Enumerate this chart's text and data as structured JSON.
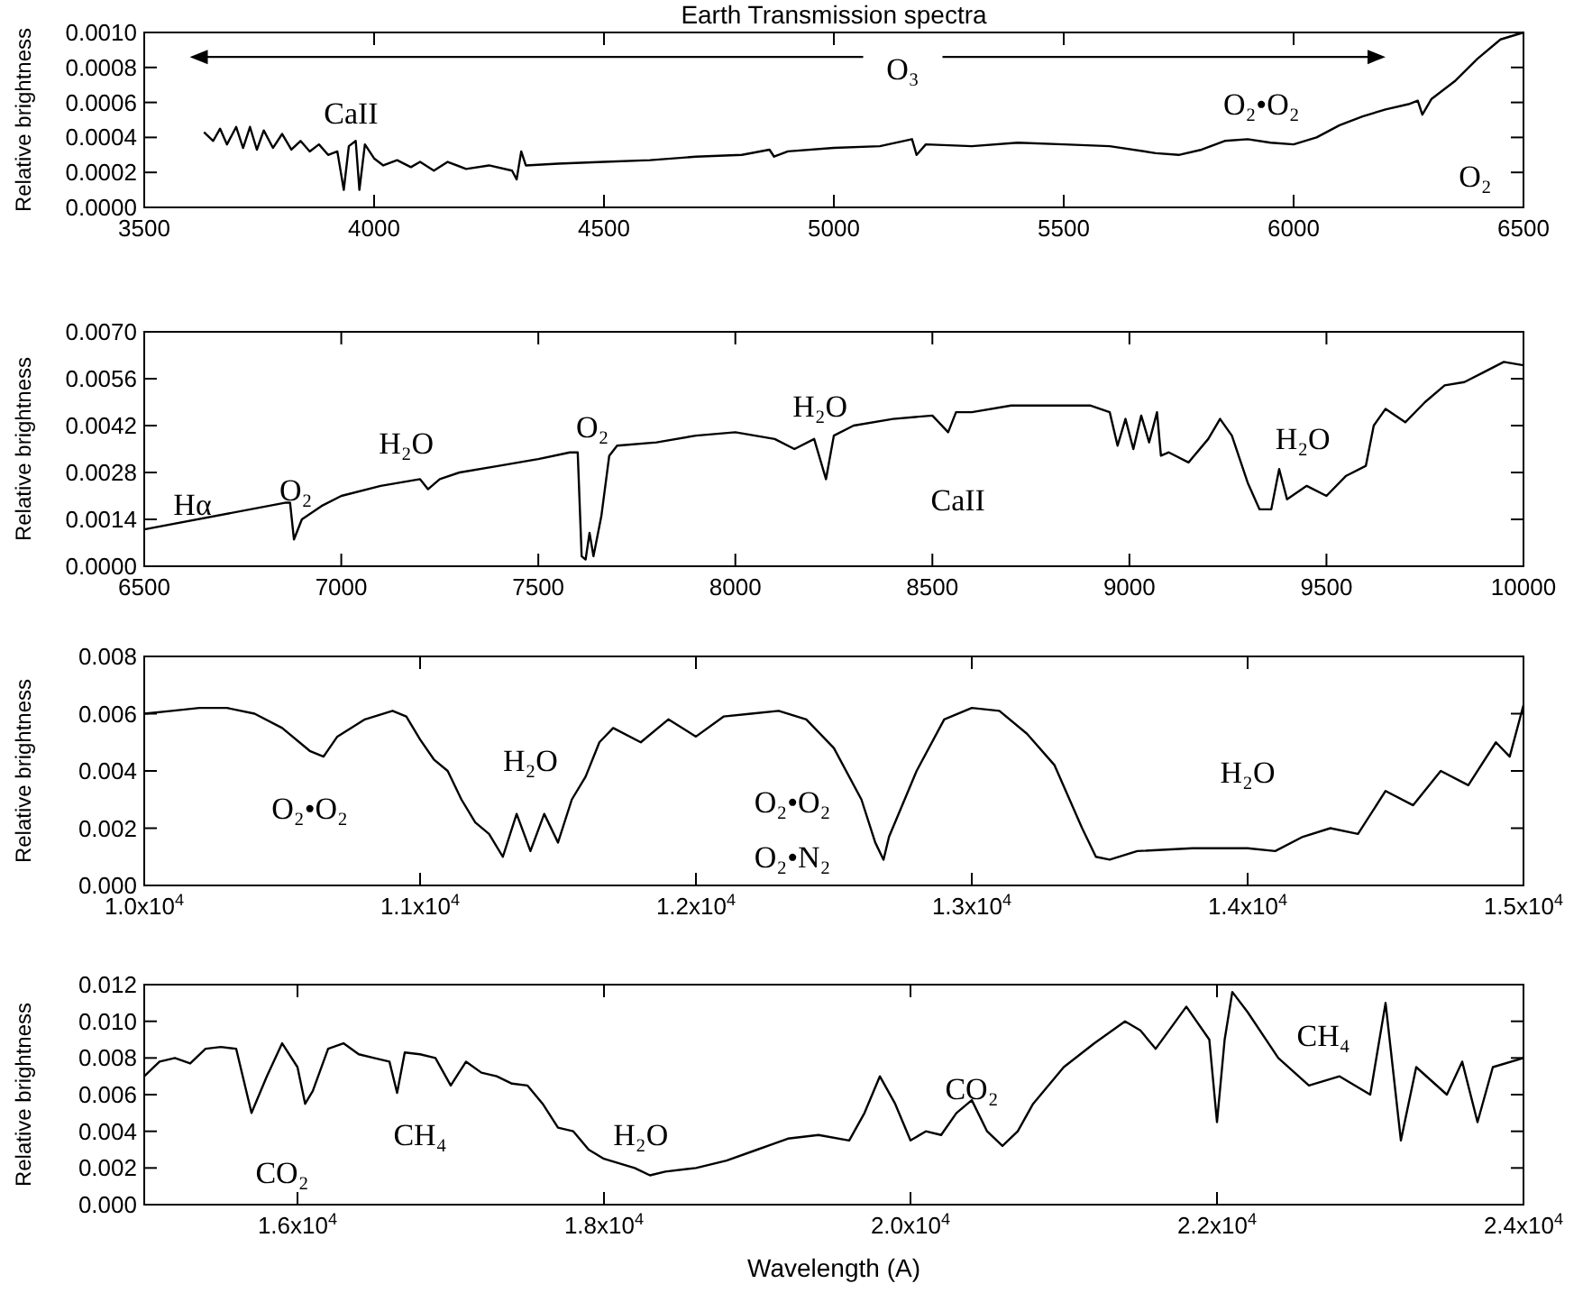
{
  "chart_data": [
    {
      "type": "line",
      "title": "Earth Transmission spectra",
      "ylabel": "Relative brightness",
      "x": [
        3630,
        3650,
        3665,
        3680,
        3700,
        3715,
        3730,
        3745,
        3760,
        3780,
        3800,
        3820,
        3840,
        3860,
        3880,
        3900,
        3920,
        3934,
        3945,
        3960,
        3968,
        3980,
        4000,
        4020,
        4050,
        4080,
        4100,
        4130,
        4160,
        4200,
        4250,
        4300,
        4310,
        4320,
        4330,
        4400,
        4500,
        4600,
        4700,
        4800,
        4860,
        4870,
        4900,
        5000,
        5100,
        5170,
        5180,
        5200,
        5300,
        5400,
        5500,
        5600,
        5700,
        5750,
        5800,
        5850,
        5900,
        5950,
        6000,
        6050,
        6100,
        6150,
        6200,
        6250,
        6270,
        6280,
        6300,
        6350,
        6400,
        6450,
        6500
      ],
      "series": [
        {
          "color": "#000000",
          "values": [
            0.00043,
            0.00038,
            0.00045,
            0.00036,
            0.00046,
            0.00034,
            0.00046,
            0.00033,
            0.00044,
            0.00034,
            0.00042,
            0.00033,
            0.00038,
            0.00032,
            0.00036,
            0.0003,
            0.00032,
            0.0001,
            0.00035,
            0.00038,
            0.0001,
            0.00036,
            0.00028,
            0.00024,
            0.00027,
            0.00023,
            0.00026,
            0.00021,
            0.00026,
            0.00022,
            0.00024,
            0.00021,
            0.00016,
            0.00032,
            0.00024,
            0.00025,
            0.00026,
            0.00027,
            0.00029,
            0.0003,
            0.00033,
            0.00029,
            0.00032,
            0.00034,
            0.00035,
            0.00039,
            0.0003,
            0.00036,
            0.00035,
            0.00037,
            0.00036,
            0.00035,
            0.00031,
            0.0003,
            0.00033,
            0.00038,
            0.00039,
            0.00037,
            0.00036,
            0.0004,
            0.00047,
            0.00052,
            0.00056,
            0.00059,
            0.00061,
            0.00053,
            0.00062,
            0.00072,
            0.00085,
            0.00096,
            0.001
          ]
        }
      ],
      "xlim": [
        3500,
        6500
      ],
      "xticks": [
        3500,
        4000,
        4500,
        5000,
        5500,
        6000,
        6500
      ],
      "ylim": [
        0,
        0.001
      ],
      "yticks": [
        {
          "value": 0,
          "label": "0.0000"
        },
        {
          "value": 0.0002,
          "label": "0.0002"
        },
        {
          "value": 0.0004,
          "label": "0.0004"
        },
        {
          "value": 0.0006,
          "label": "0.0006"
        },
        {
          "value": 0.0008,
          "label": "0.0008"
        },
        {
          "value": 0.001,
          "label": "0.0010"
        }
      ],
      "annotations": [
        "O₃",
        "CaII",
        "O₂•O₂",
        "O₂"
      ]
    },
    {
      "type": "line",
      "ylabel": "Relative brightness",
      "x": [
        6500,
        6860,
        6870,
        6880,
        6900,
        6950,
        7000,
        7100,
        7200,
        7220,
        7250,
        7300,
        7400,
        7500,
        7580,
        7600,
        7610,
        7620,
        7630,
        7640,
        7660,
        7680,
        7700,
        7800,
        7900,
        8000,
        8100,
        8150,
        8200,
        8230,
        8250,
        8300,
        8400,
        8500,
        8540,
        8560,
        8600,
        8700,
        8800,
        8900,
        8950,
        8970,
        8990,
        9010,
        9030,
        9050,
        9070,
        9080,
        9100,
        9150,
        9200,
        9230,
        9260,
        9300,
        9330,
        9360,
        9380,
        9400,
        9450,
        9500,
        9550,
        9600,
        9620,
        9650,
        9700,
        9750,
        9800,
        9850,
        9900,
        9950,
        10000
      ],
      "series": [
        {
          "color": "#000000",
          "values": [
            0.0011,
            0.0019,
            0.0019,
            0.0008,
            0.0014,
            0.0018,
            0.0021,
            0.0024,
            0.0026,
            0.0023,
            0.0026,
            0.0028,
            0.003,
            0.0032,
            0.0034,
            0.0034,
            0.0003,
            0.0002,
            0.001,
            0.0003,
            0.0015,
            0.0033,
            0.0036,
            0.0037,
            0.0039,
            0.004,
            0.0038,
            0.0035,
            0.0038,
            0.0026,
            0.0039,
            0.0042,
            0.0044,
            0.0045,
            0.004,
            0.0046,
            0.0046,
            0.0048,
            0.0048,
            0.0048,
            0.0046,
            0.0036,
            0.0044,
            0.0035,
            0.0045,
            0.0037,
            0.0046,
            0.0033,
            0.0034,
            0.0031,
            0.0038,
            0.0044,
            0.0039,
            0.0025,
            0.0017,
            0.0017,
            0.0029,
            0.002,
            0.0024,
            0.0021,
            0.0027,
            0.003,
            0.0042,
            0.0047,
            0.0043,
            0.0049,
            0.0054,
            0.0055,
            0.0058,
            0.0061,
            0.006
          ]
        }
      ],
      "xlim": [
        6500,
        10000
      ],
      "xticks": [
        6500,
        7000,
        7500,
        8000,
        8500,
        9000,
        9500,
        10000
      ],
      "ylim": [
        0,
        0.007
      ],
      "yticks": [
        {
          "value": 0,
          "label": "0.0000"
        },
        {
          "value": 0.0014,
          "label": "0.0014"
        },
        {
          "value": 0.0028,
          "label": "0.0028"
        },
        {
          "value": 0.0042,
          "label": "0.0042"
        },
        {
          "value": 0.0056,
          "label": "0.0056"
        },
        {
          "value": 0.007,
          "label": "0.0070"
        }
      ],
      "annotations": [
        "Hα",
        "O₂",
        "H₂O",
        "O₂",
        "H₂O",
        "CaII",
        "H₂O"
      ]
    },
    {
      "type": "line",
      "ylabel": "Relative brightness",
      "x": [
        10000,
        10100,
        10200,
        10300,
        10400,
        10500,
        10600,
        10650,
        10700,
        10800,
        10900,
        10950,
        11000,
        11050,
        11100,
        11150,
        11200,
        11250,
        11300,
        11350,
        11400,
        11450,
        11500,
        11550,
        11600,
        11650,
        11700,
        11800,
        11900,
        12000,
        12100,
        12200,
        12300,
        12400,
        12500,
        12600,
        12650,
        12680,
        12700,
        12800,
        12900,
        13000,
        13100,
        13200,
        13300,
        13400,
        13450,
        13500,
        13600,
        13800,
        14000,
        14100,
        14200,
        14300,
        14400,
        14500,
        14600,
        14700,
        14800,
        14900,
        14950,
        15000
      ],
      "series": [
        {
          "color": "#000000",
          "values": [
            0.006,
            0.0061,
            0.0062,
            0.0062,
            0.006,
            0.0055,
            0.0047,
            0.0045,
            0.0052,
            0.0058,
            0.0061,
            0.0059,
            0.0051,
            0.0044,
            0.004,
            0.003,
            0.0022,
            0.0018,
            0.001,
            0.0025,
            0.0012,
            0.0025,
            0.0015,
            0.003,
            0.0038,
            0.005,
            0.0055,
            0.005,
            0.0058,
            0.0052,
            0.0059,
            0.006,
            0.0061,
            0.0058,
            0.0048,
            0.003,
            0.0015,
            0.0009,
            0.0017,
            0.004,
            0.0058,
            0.0062,
            0.0061,
            0.0053,
            0.0042,
            0.002,
            0.001,
            0.0009,
            0.0012,
            0.0013,
            0.0013,
            0.0012,
            0.0017,
            0.002,
            0.0018,
            0.0033,
            0.0028,
            0.004,
            0.0035,
            0.005,
            0.0045,
            0.0063
          ]
        }
      ],
      "xlim": [
        10000,
        15000
      ],
      "xticks": [
        {
          "value": 10000,
          "label": "1.0x10$^{4}$"
        },
        {
          "value": 11000,
          "label": "1.1x10$^{4}$"
        },
        {
          "value": 12000,
          "label": "1.2x10$^{4}$"
        },
        {
          "value": 13000,
          "label": "1.3x10$^{4}$"
        },
        {
          "value": 14000,
          "label": "1.4x10$^{4}$"
        },
        {
          "value": 15000,
          "label": "1.5x10$^{4}$"
        }
      ],
      "ylim": [
        0,
        0.008
      ],
      "yticks": [
        {
          "value": 0,
          "label": "0.000"
        },
        {
          "value": 0.002,
          "label": "0.002"
        },
        {
          "value": 0.004,
          "label": "0.004"
        },
        {
          "value": 0.006,
          "label": "0.006"
        },
        {
          "value": 0.008,
          "label": "0.008"
        }
      ],
      "annotations": [
        "O₂•O₂",
        "H₂O",
        "O₂•O₂",
        "O₂•N₂",
        "H₂O"
      ]
    },
    {
      "type": "line",
      "ylabel": "Relative brightness",
      "xlabel": "Wavelength (A)",
      "x": [
        15000,
        15100,
        15200,
        15300,
        15400,
        15500,
        15600,
        15700,
        15800,
        15900,
        16000,
        16050,
        16100,
        16200,
        16300,
        16400,
        16500,
        16600,
        16650,
        16700,
        16800,
        16900,
        17000,
        17100,
        17200,
        17300,
        17400,
        17500,
        17600,
        17700,
        17800,
        17900,
        18000,
        18200,
        18300,
        18400,
        18600,
        18800,
        19000,
        19200,
        19400,
        19600,
        19700,
        19800,
        19900,
        20000,
        20100,
        20200,
        20300,
        20400,
        20500,
        20600,
        20700,
        20800,
        21000,
        21200,
        21400,
        21500,
        21600,
        21800,
        21950,
        22000,
        22050,
        22100,
        22200,
        22400,
        22600,
        22800,
        23000,
        23100,
        23200,
        23300,
        23500,
        23600,
        23700,
        23800,
        24000
      ],
      "series": [
        {
          "color": "#000000",
          "values": [
            0.007,
            0.0078,
            0.008,
            0.0077,
            0.0085,
            0.0086,
            0.0085,
            0.005,
            0.007,
            0.0088,
            0.0075,
            0.0055,
            0.0062,
            0.0085,
            0.0088,
            0.0082,
            0.008,
            0.0078,
            0.0061,
            0.0083,
            0.0082,
            0.008,
            0.0065,
            0.0078,
            0.0072,
            0.007,
            0.0066,
            0.0065,
            0.0055,
            0.0042,
            0.004,
            0.003,
            0.0025,
            0.002,
            0.0016,
            0.0018,
            0.002,
            0.0024,
            0.003,
            0.0036,
            0.0038,
            0.0035,
            0.005,
            0.007,
            0.0055,
            0.0035,
            0.004,
            0.0038,
            0.005,
            0.0057,
            0.004,
            0.0032,
            0.004,
            0.0055,
            0.0075,
            0.0088,
            0.01,
            0.0095,
            0.0085,
            0.0108,
            0.009,
            0.0045,
            0.009,
            0.0116,
            0.0105,
            0.008,
            0.0065,
            0.007,
            0.006,
            0.011,
            0.0035,
            0.0075,
            0.006,
            0.0078,
            0.0045,
            0.0075,
            0.008
          ]
        }
      ],
      "xlim": [
        15000,
        24000
      ],
      "xticks": [
        {
          "value": 16000,
          "label": "1.6x10$^{4}$"
        },
        {
          "value": 18000,
          "label": "1.8x10$^{4}$"
        },
        {
          "value": 20000,
          "label": "2.0x10$^{4}$"
        },
        {
          "value": 22000,
          "label": "2.2x10$^{4}$"
        },
        {
          "value": 24000,
          "label": "2.4x10$^{4}$"
        }
      ],
      "ylim": [
        0,
        0.012
      ],
      "yticks": [
        {
          "value": 0,
          "label": "0.000"
        },
        {
          "value": 0.002,
          "label": "0.002"
        },
        {
          "value": 0.004,
          "label": "0.004"
        },
        {
          "value": 0.006,
          "label": "0.006"
        },
        {
          "value": 0.008,
          "label": "0.008"
        },
        {
          "value": 0.01,
          "label": "0.010"
        },
        {
          "value": 0.012,
          "label": "0.012"
        }
      ],
      "annotations": [
        "CO₂",
        "CH₄",
        "H₂O",
        "CO₂",
        "CH₄"
      ]
    }
  ]
}
